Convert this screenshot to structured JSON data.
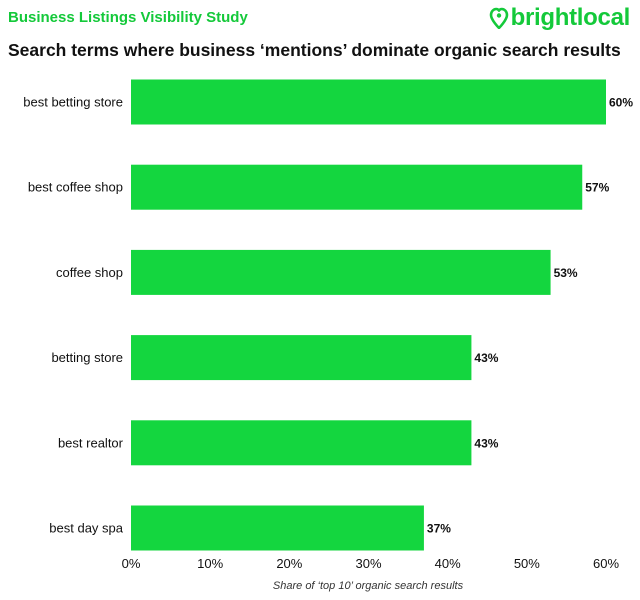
{
  "header": {
    "study_title": "Business Listings Visibility Study",
    "brand_name": "brightlocal",
    "brand_icon": "heart-pin-icon",
    "brand_color": "#14c93a"
  },
  "chart_data": {
    "type": "bar",
    "orientation": "horizontal",
    "title": "Search terms where business ‘mentions’ dominate organic search results",
    "categories": [
      "best betting store",
      "best coffee shop",
      "coffee shop",
      "betting store",
      "best realtor",
      "best day spa"
    ],
    "values": [
      60,
      57,
      53,
      43,
      43,
      37
    ],
    "value_labels": [
      "60%",
      "57%",
      "53%",
      "43%",
      "43%",
      "37%"
    ],
    "xlabel": "Share of ‘top 10’ organic search results",
    "ylabel": "",
    "xlim": [
      0,
      60
    ],
    "ticks": [
      0,
      10,
      20,
      30,
      40,
      50,
      60
    ],
    "tick_labels": [
      "0%",
      "10%",
      "20%",
      "30%",
      "40%",
      "50%",
      "60%"
    ],
    "bar_color": "#14d63f",
    "grid": false
  }
}
